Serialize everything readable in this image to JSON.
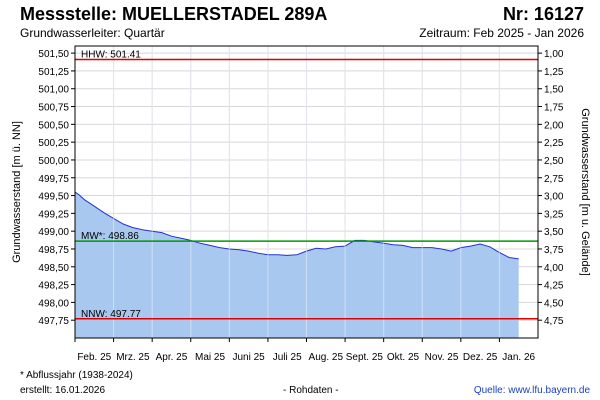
{
  "header": {
    "title": "Messstelle: MUELLERSTADEL 289A",
    "number": "Nr: 16127",
    "subtitle": "Grundwasserleiter: Quartär",
    "period": "Zeitraum: Feb 2025 - Jan 2026"
  },
  "footer": {
    "note": "* Abflussjahr (1938-2024)",
    "created": "erstellt:  16.01.2026",
    "raw": "- Rohdaten -",
    "source": "Quelle:  www.lfu.bayern.de"
  },
  "colors": {
    "area_fill": "#a9c8f0",
    "series_line": "#2233cc",
    "hhw_line": "#dd0000",
    "nnw_line": "#dd0000",
    "mw_line": "#009900",
    "grid": "#d8d8d8"
  },
  "chart_data": {
    "type": "area",
    "ylabel": "Grundwasserstand [m ü. NN]",
    "ylabel_right": "Grundwasserstand [m u. Gelände]",
    "ylim": [
      497.5,
      501.6
    ],
    "y_ticks": [
      "497,75",
      "498,00",
      "498,25",
      "498,50",
      "498,75",
      "499,00",
      "499,25",
      "499,50",
      "499,75",
      "500,00",
      "500,25",
      "500,50",
      "500,75",
      "501,00",
      "501,25",
      "501,50"
    ],
    "y_tick_values": [
      497.75,
      498.0,
      498.25,
      498.5,
      498.75,
      499.0,
      499.25,
      499.5,
      499.75,
      500.0,
      500.25,
      500.5,
      500.75,
      501.0,
      501.25,
      501.5
    ],
    "right_ticks": [
      "4,75",
      "4,50",
      "4,25",
      "4,00",
      "3,75",
      "3,50",
      "3,25",
      "3,00",
      "2,75",
      "2,50",
      "2,25",
      "2,00",
      "1,75",
      "1,50",
      "1,25",
      "1,00"
    ],
    "x_ticks": [
      "Feb. 25",
      "Mrz. 25",
      "Apr. 25",
      "Mai 25",
      "Juni 25",
      "Juli 25",
      "Aug. 25",
      "Sept. 25",
      "Okt. 25",
      "Nov. 25",
      "Dez. 25",
      "Jan. 26"
    ],
    "x_tick_months": [
      0,
      1,
      2,
      3,
      4,
      5,
      6,
      7,
      8,
      9,
      10,
      11
    ],
    "xlim_months": [
      0,
      12
    ],
    "grid": true,
    "series": [
      {
        "x_months": [
          0.0,
          0.1,
          0.25,
          0.5,
          0.75,
          1.0,
          1.25,
          1.5,
          1.75,
          2.0,
          2.25,
          2.5,
          2.75,
          3.0,
          3.25,
          3.5,
          3.75,
          4.0,
          4.25,
          4.5,
          4.75,
          5.0,
          5.25,
          5.5,
          5.75,
          6.0,
          6.25,
          6.5,
          6.75,
          7.0,
          7.25,
          7.5,
          7.75,
          8.0,
          8.25,
          8.5,
          8.75,
          9.0,
          9.25,
          9.5,
          9.75,
          10.0,
          10.25,
          10.5,
          10.75,
          11.0,
          11.25,
          11.5
        ],
        "values": [
          499.55,
          499.51,
          499.44,
          499.35,
          499.26,
          499.18,
          499.1,
          499.05,
          499.02,
          499.0,
          498.98,
          498.93,
          498.9,
          498.87,
          498.83,
          498.8,
          498.77,
          498.75,
          498.74,
          498.72,
          498.69,
          498.67,
          498.67,
          498.66,
          498.67,
          498.72,
          498.76,
          498.75,
          498.78,
          498.79,
          498.87,
          498.87,
          498.85,
          498.83,
          498.81,
          498.8,
          498.77,
          498.77,
          498.77,
          498.75,
          498.72,
          498.77,
          498.79,
          498.82,
          498.78,
          498.7,
          498.63,
          498.61
        ]
      }
    ],
    "reference_lines": [
      {
        "label": "HHW: 501.41",
        "value": 501.41
      },
      {
        "label": "MW*: 498.86",
        "value": 498.86
      },
      {
        "label": "NNW: 497.77",
        "value": 497.77
      }
    ]
  }
}
